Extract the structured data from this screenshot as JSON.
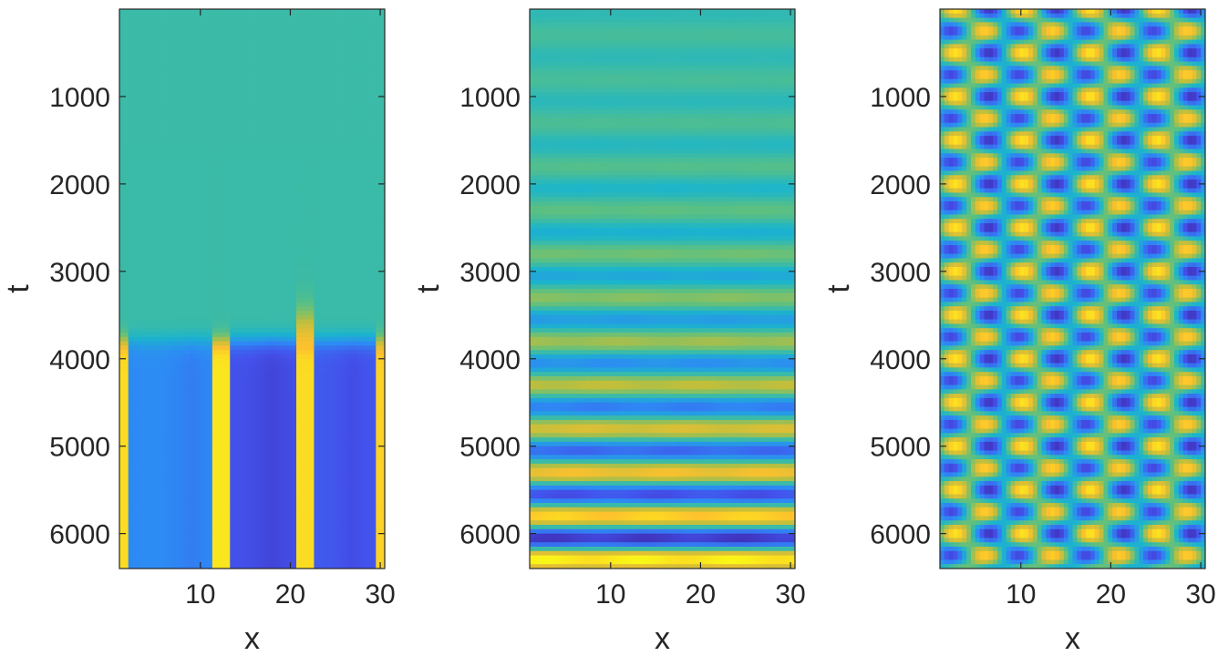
{
  "figure": {
    "colormap": [
      "#3e26a8",
      "#4352ec",
      "#2d8bf4",
      "#1bb5cc",
      "#5ac083",
      "#bdbf3d",
      "#fdc02e",
      "#f9fb15"
    ],
    "axes_color": "#262626",
    "background": "#ffffff"
  },
  "chart_data": [
    {
      "type": "heatmap",
      "title": "",
      "xlabel": "x",
      "ylabel": "t",
      "xlim": [
        1,
        30.5
      ],
      "ylim": [
        0,
        6400
      ],
      "y_reversed": true,
      "xticks": [
        10,
        20,
        30
      ],
      "yticks": [
        1000,
        2000,
        3000,
        4000,
        5000,
        6000
      ],
      "colormap": "parula",
      "z_range": [
        -1,
        1
      ],
      "description_rows": [
        {
          "t_start": 0,
          "t_end": 3800,
          "pattern": "uniform",
          "value": 0.0
        },
        {
          "t_start": 3800,
          "t_end": 6400,
          "pattern": "columns",
          "columns": [
            {
              "x": [
                1,
                2
              ],
              "value": 0.85
            },
            {
              "x": [
                2,
                11.5
              ],
              "value": -0.5
            },
            {
              "x": [
                11.5,
                13.5
              ],
              "value": 0.9
            },
            {
              "x": [
                13.5,
                20.5
              ],
              "value": -0.8
            },
            {
              "x": [
                20.5,
                22.5
              ],
              "value": 0.85
            },
            {
              "x": [
                22.5,
                29.5
              ],
              "value": -0.75
            },
            {
              "x": [
                29.5,
                30.5
              ],
              "value": 0.8
            }
          ]
        }
      ]
    },
    {
      "type": "heatmap",
      "title": "",
      "xlabel": "x",
      "ylabel": "t",
      "xlim": [
        1,
        30.5
      ],
      "ylim": [
        0,
        6400
      ],
      "y_reversed": true,
      "xticks": [
        10,
        20,
        30
      ],
      "yticks": [
        1000,
        2000,
        3000,
        4000,
        5000,
        6000
      ],
      "colormap": "parula",
      "z_range": [
        -1,
        1
      ],
      "pattern": "horizontal bands oscillating in t, amplitude growing with t",
      "band_period_t": 500,
      "amplitude_start": 0.05,
      "amplitude_end": 1.0
    },
    {
      "type": "heatmap",
      "title": "",
      "xlabel": "x",
      "ylabel": "t",
      "xlim": [
        1,
        30.5
      ],
      "ylim": [
        0,
        6400
      ],
      "y_reversed": true,
      "xticks": [
        10,
        20,
        30
      ],
      "yticks": [
        1000,
        2000,
        3000,
        4000,
        5000,
        6000
      ],
      "colormap": "parula",
      "z_range": [
        -1,
        1
      ],
      "pattern": "checkerboard of spots, period ~7.5 in x and ~500 in t, alternating phase",
      "period_x": 7.5,
      "period_t": 500
    }
  ]
}
